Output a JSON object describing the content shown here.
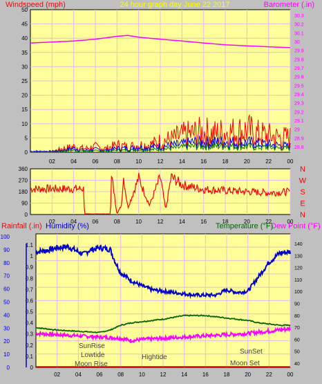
{
  "colors": {
    "background": "#c0c0c0",
    "plot_bg": "#ffff99",
    "grid": "#e8b8e8",
    "windspeed": "#ff0000",
    "gust": "#0000ff",
    "avg": "#008000",
    "barometer": "#ff00ff",
    "direction": "#ff0000",
    "rainfall": "#ff0000",
    "humidity": "#0000cc",
    "temperature": "#006600",
    "dewpoint": "#ff00ff",
    "title": "#ffff00"
  },
  "chart_data": [
    {
      "type": "line",
      "panel": "wind-barometer",
      "title": "24 hour graph day June 22 2017",
      "ylabel_left": "Windspeed (mph)",
      "ylabel_right": "Barometer (.in)",
      "left_ticks": [
        "50",
        "45",
        "40",
        "35",
        "30",
        "25",
        "20",
        "15",
        "10",
        "5",
        "0"
      ],
      "right_ticks": [
        "30.3",
        "30.2",
        "30.1",
        "30",
        "29.9",
        "29.8",
        "29.7",
        "29.6",
        "29.5",
        "29.4",
        "29.3",
        "29.2",
        "29.1",
        "29",
        "28.9",
        "28.8"
      ],
      "x_ticks": [
        "02",
        "04",
        "06",
        "08",
        "10",
        "12",
        "14",
        "16",
        "18",
        "20",
        "22",
        "00"
      ],
      "ylim_left": [
        0,
        50
      ],
      "ylim_right": [
        28.8,
        30.3
      ],
      "barometer": {
        "x": [
          0,
          2,
          4,
          6,
          8,
          9,
          10,
          12,
          14,
          16,
          18,
          20,
          22,
          24
        ],
        "y": [
          29.95,
          29.96,
          29.97,
          29.99,
          30.02,
          30.03,
          30.01,
          29.99,
          29.97,
          29.95,
          29.93,
          29.92,
          29.91,
          29.9
        ]
      },
      "windspeed": {
        "x": [
          0,
          2,
          3,
          4,
          5,
          6,
          7,
          8,
          9,
          10,
          11,
          12,
          13,
          14,
          15,
          16,
          17,
          18,
          19,
          20,
          21,
          22,
          23,
          24
        ],
        "high": [
          0.5,
          0.5,
          2,
          3,
          2,
          3,
          2,
          4,
          3,
          4,
          4,
          6,
          7,
          9,
          10,
          11,
          10,
          11,
          11,
          12,
          10,
          9,
          8,
          8
        ],
        "gust": [
          0.5,
          0.5,
          1,
          2,
          1,
          1.5,
          1,
          2,
          2,
          2.5,
          2.5,
          3,
          3.5,
          4,
          5,
          5,
          5,
          5.5,
          5,
          5,
          4.5,
          4,
          3.5,
          3
        ],
        "avg": [
          0.2,
          0.2,
          0.5,
          1,
          0.5,
          0.7,
          0.5,
          1,
          1,
          1.2,
          1.2,
          1.5,
          2,
          2.5,
          3,
          3,
          3,
          3.5,
          3,
          3,
          2.5,
          2.5,
          2,
          2
        ]
      }
    },
    {
      "type": "line",
      "panel": "wind-direction",
      "left_ticks": [
        "360",
        "270",
        "180",
        "90",
        "0"
      ],
      "right_labels": [
        "N",
        "W",
        "S",
        "E",
        "N"
      ],
      "x_ticks": [
        "02",
        "04",
        "06",
        "08",
        "10",
        "12",
        "14",
        "16",
        "18",
        "20",
        "22",
        "00"
      ],
      "ylim": [
        0,
        360
      ],
      "x": [
        0,
        3,
        4.9,
        5,
        7.4,
        7.5,
        8,
        8.4,
        8.6,
        9,
        10,
        11,
        12,
        12.5,
        13,
        14,
        16,
        18,
        20,
        22,
        24
      ],
      "y": [
        225,
        225,
        225,
        5,
        5,
        345,
        5,
        80,
        330,
        60,
        320,
        80,
        330,
        40,
        330,
        260,
        220,
        210,
        200,
        190,
        200
      ]
    },
    {
      "type": "line",
      "panel": "temperature-humidity",
      "ylabel_left_a": "Rainfall (.in)",
      "ylabel_left_b": "Humidity (%)",
      "ylabel_right_a": "Temperature (°F)",
      "ylabel_right_b": "Dew Point (°F)",
      "humidity_ticks": [
        "100",
        "90",
        "80",
        "70",
        "60",
        "50",
        "40",
        "30",
        "20",
        "10",
        "0"
      ],
      "rain_ticks": [
        "1.1",
        "1",
        "0.9",
        "0.8",
        "0.7",
        "0.6",
        "0.5",
        "0.4",
        "0.3",
        "0.2",
        "0.1",
        "0"
      ],
      "temp_ticks": [
        "140",
        "130",
        "120",
        "110",
        "100",
        "90",
        "80",
        "70",
        "60",
        "50",
        "40"
      ],
      "x_ticks": [
        "02",
        "04",
        "06",
        "08",
        "10",
        "12",
        "14",
        "16",
        "18",
        "20",
        "22",
        "00"
      ],
      "ylim_humidity": [
        0,
        100
      ],
      "ylim_temp": [
        35,
        145
      ],
      "annotations": [
        "SunRise",
        "Lowtide",
        "Moon Rise",
        "Hightide",
        "SunSet",
        "Moon Set"
      ],
      "humidity": {
        "x": [
          0,
          1,
          2,
          3,
          4,
          4.5,
          5,
          6,
          7,
          7.5,
          8,
          9,
          10,
          11,
          12,
          13,
          14,
          15,
          16,
          17,
          18,
          19,
          20,
          21,
          22,
          23,
          24
        ],
        "y": [
          88,
          89,
          91,
          92,
          88,
          86,
          89,
          91,
          90,
          80,
          72,
          66,
          62,
          59,
          58,
          57,
          56,
          55,
          55,
          55,
          59,
          57,
          58,
          69,
          80,
          87,
          88
        ]
      },
      "temperature": {
        "x": [
          0,
          2,
          4,
          6,
          7,
          8,
          9,
          10,
          12,
          14,
          16,
          18,
          20,
          21,
          22,
          23,
          24
        ],
        "y": [
          68,
          66,
          65,
          64,
          66,
          70,
          72,
          73,
          75,
          78,
          78,
          76,
          74,
          72,
          71,
          70,
          70
        ]
      },
      "dewpoint": {
        "x": [
          0,
          2,
          4,
          6,
          8,
          9,
          10,
          12,
          14,
          16,
          18,
          20,
          22,
          24
        ],
        "y": [
          64,
          63,
          62,
          61,
          60,
          58,
          59,
          60,
          61,
          62,
          63,
          64,
          66,
          68
        ]
      }
    }
  ]
}
